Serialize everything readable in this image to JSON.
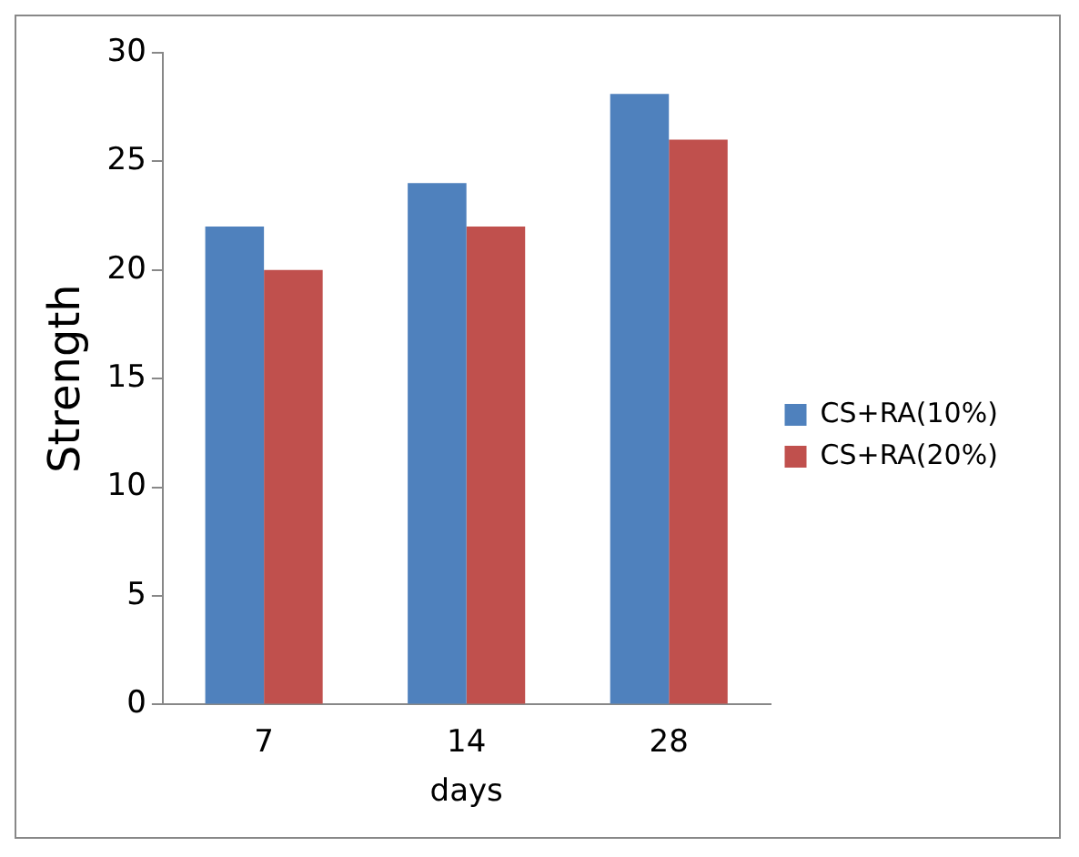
{
  "chart_data": {
    "type": "bar",
    "xlabel": "days",
    "ylabel": "Strength",
    "categories": [
      "7",
      "14",
      "28"
    ],
    "series": [
      {
        "name": "CS+RA(10%)",
        "color": "#4f81bd",
        "values": [
          22,
          24,
          28.1
        ]
      },
      {
        "name": "CS+RA(20%)",
        "color": "#c0504d",
        "values": [
          20,
          22,
          26
        ]
      }
    ],
    "ylim": [
      0,
      30
    ],
    "yticks": [
      0,
      5,
      10,
      15,
      20,
      25,
      30
    ],
    "grid": false,
    "legend": "right"
  }
}
